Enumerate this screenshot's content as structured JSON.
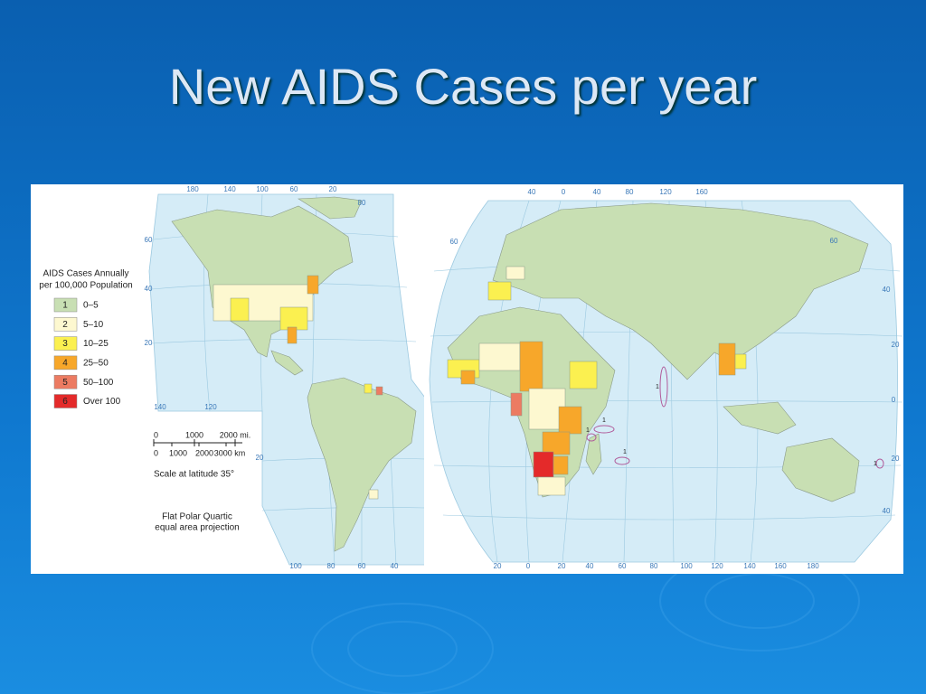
{
  "title": "New AIDS Cases per year",
  "legend": {
    "title": [
      "AIDS Cases Annually",
      "per 100,000 Population"
    ],
    "items": [
      {
        "code": "1",
        "label": "0–5",
        "color": "#c8dfb3"
      },
      {
        "code": "2",
        "label": "5–10",
        "color": "#fdf8d0"
      },
      {
        "code": "3",
        "label": "10–25",
        "color": "#fbf050"
      },
      {
        "code": "4",
        "label": "25–50",
        "color": "#f7a72a"
      },
      {
        "code": "5",
        "label": "50–100",
        "color": "#ec7b62"
      },
      {
        "code": "6",
        "label": "Over 100",
        "color": "#e42a2a"
      }
    ]
  },
  "scale": {
    "miles": [
      "0",
      "1000",
      "2000 mi."
    ],
    "km": [
      "0",
      "1000",
      "2000",
      "3000 km"
    ],
    "note": "Scale at latitude 35°"
  },
  "projection": [
    "Flat Polar Quartic",
    "equal area projection"
  ],
  "west_map": {
    "graticule_labels": [
      "180",
      "140",
      "100",
      "60",
      "20",
      "80",
      "60",
      "40",
      "20",
      "140",
      "120",
      "100",
      "80",
      "60",
      "40",
      "20"
    ]
  },
  "east_map": {
    "graticule_labels": [
      "40",
      "0",
      "40",
      "80",
      "120",
      "160",
      "60",
      "60",
      "40",
      "20",
      "0",
      "20",
      "40",
      "20",
      "0",
      "20",
      "40",
      "60",
      "80",
      "100",
      "120",
      "140",
      "160",
      "180"
    ],
    "island_labels": [
      "1",
      "1",
      "1",
      "1",
      "1"
    ]
  }
}
